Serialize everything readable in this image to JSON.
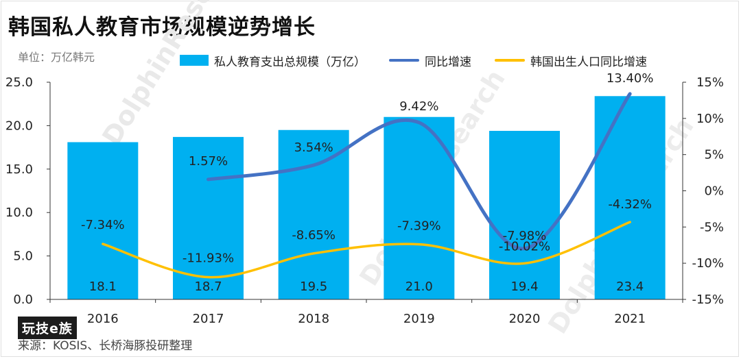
{
  "title": "韩国私人教育市场规模逆势增长",
  "unit_label": "单位：万亿韩元",
  "source": "来源：KOSIS、长桥海豚投研整理",
  "logo_text": "玩技e族",
  "watermark": "LONGBRIDGE DolphinResearch",
  "colors": {
    "bar": "#00b0f0",
    "growth_line": "#4472c4",
    "birth_line": "#ffc000",
    "axis": "#333333"
  },
  "chart_data": {
    "type": "bar",
    "categories": [
      "2016",
      "2017",
      "2018",
      "2019",
      "2020",
      "2021"
    ],
    "left_axis": {
      "ylim": [
        0,
        25
      ],
      "ticks": [
        "0.0",
        "5.0",
        "10.0",
        "15.0",
        "20.0",
        "25.0"
      ]
    },
    "right_axis": {
      "ylim": [
        -15,
        15
      ],
      "ticks": [
        "-15%",
        "-10%",
        "-5%",
        "0%",
        "5%",
        "10%",
        "15%"
      ]
    },
    "series": [
      {
        "name": "私人教育支出总规模（万亿）",
        "type": "bar",
        "axis": "left",
        "values": [
          18.1,
          18.7,
          19.5,
          21.0,
          19.4,
          23.4
        ],
        "labels": [
          "18.1",
          "18.7",
          "19.5",
          "21.0",
          "19.4",
          "23.4"
        ]
      },
      {
        "name": "同比增速",
        "type": "line",
        "axis": "right",
        "values": [
          null,
          1.57,
          3.54,
          9.42,
          -7.98,
          13.4
        ],
        "labels": [
          "",
          "1.57%",
          "3.54%",
          "9.42%",
          "-7.98%",
          "13.40%"
        ]
      },
      {
        "name": "韩国出生人口同比增速",
        "type": "line",
        "axis": "right",
        "values": [
          -7.34,
          -11.93,
          -8.65,
          -7.39,
          -10.02,
          -4.32
        ],
        "labels": [
          "-7.34%",
          "-11.93%",
          "-8.65%",
          "-7.39%",
          "-10.02%",
          "-4.32%"
        ]
      }
    ],
    "grid": false,
    "legend_position": "top"
  }
}
